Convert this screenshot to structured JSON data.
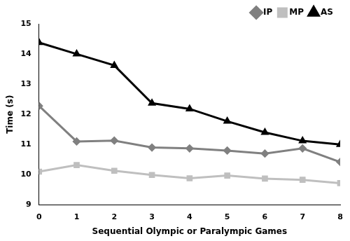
{
  "chart_data": {
    "type": "line",
    "x_label": "Sequential Olympic or Paralympic Games",
    "y_label": "Time (s)",
    "x": [
      0,
      1,
      2,
      3,
      4,
      5,
      6,
      7,
      8
    ],
    "series": [
      {
        "name": "IP",
        "color": "#808080",
        "marker": "diamond",
        "values": [
          12.28,
          11.1,
          11.13,
          10.9,
          10.87,
          10.8,
          10.7,
          10.87,
          10.42
        ]
      },
      {
        "name": "MP",
        "color": "#bfbfbf",
        "marker": "square",
        "values": [
          10.1,
          10.32,
          10.13,
          9.99,
          9.88,
          9.97,
          9.87,
          9.83,
          9.72
        ]
      },
      {
        "name": "AS",
        "color": "#000000",
        "marker": "triangle",
        "values": [
          14.38,
          14.0,
          13.62,
          12.37,
          12.18,
          11.77,
          11.4,
          11.12,
          11.0
        ]
      }
    ],
    "xlim": [
      0,
      8
    ],
    "xticks": [
      0,
      1,
      2,
      3,
      4,
      5,
      6,
      7,
      8
    ],
    "ylim": [
      9,
      15
    ],
    "yticks": [
      9,
      10,
      11,
      12,
      13,
      14,
      15
    ],
    "grid": false,
    "legend": "top-right"
  }
}
